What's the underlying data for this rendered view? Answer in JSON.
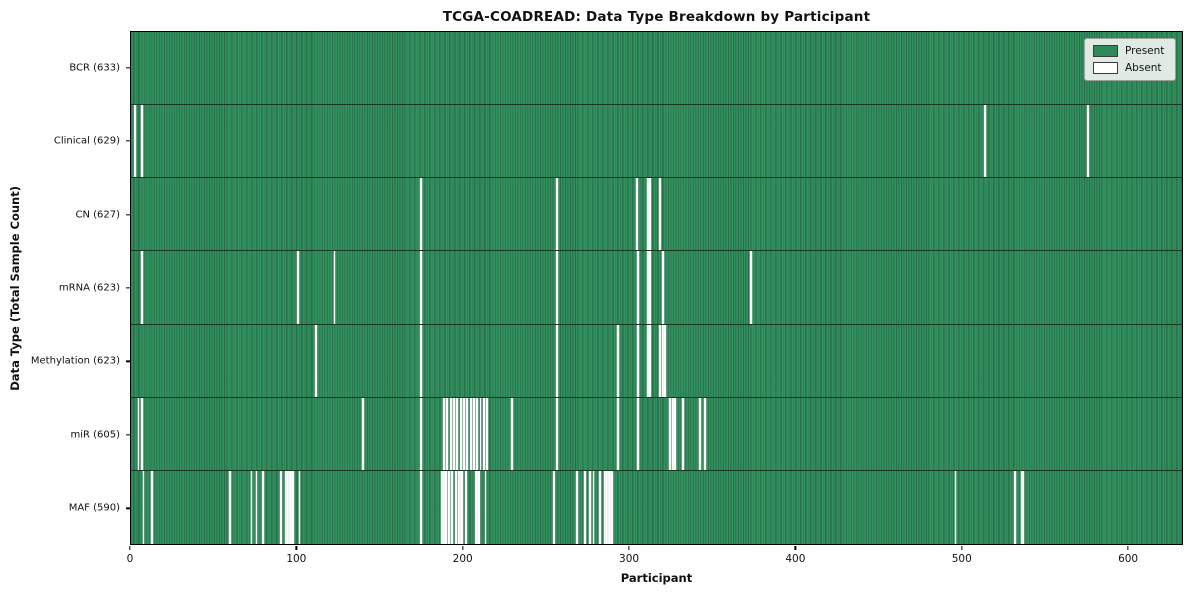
{
  "title": "TCGA-COADREAD: Data Type Breakdown by Participant",
  "xlabel": "Participant",
  "ylabel": "Data Type (Total Sample Count)",
  "legend": {
    "present_label": "Present",
    "absent_label": "Absent"
  },
  "colors": {
    "present": "#2e8b57",
    "absent": "#ffffff",
    "cell_edge": "#1d5537",
    "axis": "#000000",
    "legend_bg": "#f0f3f0"
  },
  "chart_data": {
    "type": "heatmap",
    "title": "TCGA-COADREAD: Data Type Breakdown by Participant",
    "xlabel": "Participant",
    "ylabel": "Data Type (Total Sample Count)",
    "legend_entries": [
      {
        "label": "Present",
        "color": "#2e8b57"
      },
      {
        "label": "Absent",
        "color": "#ffffff"
      }
    ],
    "legend_position": "upper right",
    "grid": false,
    "x_ticks": [
      0,
      100,
      200,
      300,
      400,
      500,
      600
    ],
    "xlim": [
      0,
      633
    ],
    "n_participants": 633,
    "rows": [
      {
        "label": "BCR (633)",
        "total_samples": 633,
        "absent_participants": []
      },
      {
        "label": "Clinical (629)",
        "total_samples": 629,
        "absent_participants": [
          2,
          6,
          514,
          576
        ]
      },
      {
        "label": "CN (627)",
        "total_samples": 627,
        "absent_participants": [
          174,
          256,
          304,
          311,
          312,
          318
        ]
      },
      {
        "label": "mRNA (623)",
        "total_samples": 623,
        "absent_participants": [
          6,
          100,
          122,
          174,
          256,
          305,
          311,
          312,
          320,
          373
        ]
      },
      {
        "label": "Methylation (623)",
        "total_samples": 623,
        "absent_participants": [
          111,
          174,
          256,
          293,
          305,
          311,
          312,
          318,
          320,
          321
        ]
      },
      {
        "label": "miR (605)",
        "total_samples": 605,
        "absent_participants": [
          4,
          6,
          139,
          174,
          188,
          190,
          192,
          194,
          196,
          198,
          200,
          202,
          204,
          206,
          208,
          210,
          212,
          214,
          229,
          256,
          293,
          305,
          324,
          326,
          327,
          332,
          342,
          345
        ]
      },
      {
        "label": "MAF (590)",
        "total_samples": 590,
        "absent_participants": [
          7,
          12,
          59,
          72,
          75,
          79,
          90,
          93,
          94,
          95,
          96,
          97,
          101,
          174,
          187,
          188,
          189,
          191,
          193,
          195,
          197,
          198,
          199,
          201,
          207,
          208,
          209,
          213,
          254,
          268,
          273,
          276,
          278,
          282,
          285,
          286,
          287,
          288,
          289,
          496,
          532,
          536,
          537
        ]
      }
    ]
  }
}
